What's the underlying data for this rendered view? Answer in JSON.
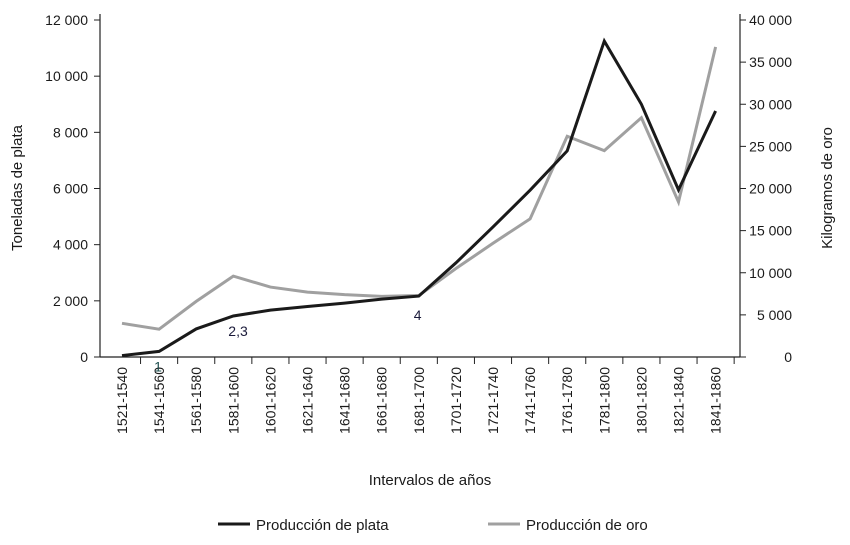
{
  "chart_data": {
    "type": "line",
    "xlabel": "Intervalos de años",
    "ylabel_left": "Toneladas de plata",
    "ylabel_right": "Kilogramos de oro",
    "ylim_left": [
      0,
      12000
    ],
    "ylim_right": [
      0,
      40000
    ],
    "yticks_left": [
      0,
      2000,
      4000,
      6000,
      8000,
      10000,
      12000
    ],
    "yticks_left_labels": [
      "0",
      "2 000",
      "4 000",
      "6 000",
      "8 000",
      "10 000",
      "12 000"
    ],
    "yticks_right": [
      0,
      5000,
      10000,
      15000,
      20000,
      25000,
      30000,
      35000,
      40000
    ],
    "yticks_right_labels": [
      "0",
      "5 000",
      "10 000",
      "15 000",
      "20 000",
      "25 000",
      "30 000",
      "35 000",
      "40 000"
    ],
    "categories": [
      "1521-1540",
      "1541-1560",
      "1561-1580",
      "1581-1600",
      "1601-1620",
      "1621-1640",
      "1641-1680",
      "1661-1680",
      "1681-1700",
      "1701-1720",
      "1721-1740",
      "1741-1760",
      "1761-1780",
      "1781-1800",
      "1801-1820",
      "1821-1840",
      "1841-1860"
    ],
    "grid": false,
    "legend_placement": "bottom",
    "series": [
      {
        "name": "Producción de plata",
        "axis": "left",
        "color": "#1a1a1a",
        "values": [
          50,
          200,
          1000,
          1460,
          1670,
          1800,
          1920,
          2060,
          2170,
          3350,
          4630,
          5940,
          7340,
          11250,
          9000,
          5950,
          8760
        ]
      },
      {
        "name": "Producción de oro",
        "axis": "right",
        "color": "#a0a0a0",
        "values": [
          4000,
          3300,
          6600,
          9600,
          8300,
          7700,
          7400,
          7200,
          7300,
          10500,
          13500,
          16400,
          26200,
          24500,
          28400,
          18400,
          36800
        ]
      }
    ],
    "annotations": [
      {
        "text": "1",
        "category": "1541-1560",
        "color": "#1f4f4f"
      },
      {
        "text": "2,3",
        "category": "1581-1600",
        "color": "#1a1a3a"
      },
      {
        "text": "4",
        "category": "1681-1700",
        "color": "#1a1a3a"
      }
    ]
  }
}
